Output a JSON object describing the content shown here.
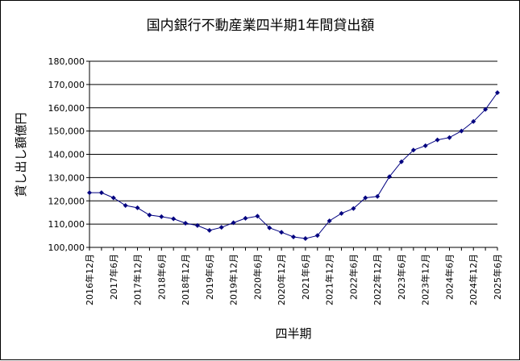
{
  "chart_data": {
    "type": "line",
    "title": "国内銀行不動産業四半期1年間貸出額",
    "xlabel": "四半期",
    "ylabel": "貸し出し額億円",
    "ylim": [
      100000,
      180000
    ],
    "ytick_step": 10000,
    "grid": "horizontal",
    "legend": "none",
    "series_color": "#000080",
    "x": [
      "2016年12月",
      "2017年3月",
      "2017年6月",
      "2017年9月",
      "2017年12月",
      "2018年3月",
      "2018年6月",
      "2018年9月",
      "2018年12月",
      "2019年3月",
      "2019年6月",
      "2019年9月",
      "2019年12月",
      "2020年3月",
      "2020年6月",
      "2020年9月",
      "2020年12月",
      "2021年3月",
      "2021年6月",
      "2021年9月",
      "2021年12月",
      "2022年3月",
      "2022年6月",
      "2022年9月",
      "2022年12月",
      "2023年3月",
      "2023年6月",
      "2023年9月",
      "2023年12月",
      "2024年3月",
      "2024年6月",
      "2024年9月",
      "2024年12月",
      "2025年3月",
      "2025年6月"
    ],
    "x_tick_labels": [
      "2016年12月",
      "2017年6月",
      "2017年12月",
      "2018年6月",
      "2018年12月",
      "2019年6月",
      "2019年12月",
      "2020年6月",
      "2020年12月",
      "2021年6月",
      "2021年12月",
      "2022年6月",
      "2022年12月",
      "2023年6月",
      "2023年12月",
      "2024年6月",
      "2024年12月",
      "2025年6月"
    ],
    "values": [
      123500,
      123500,
      121300,
      118000,
      117000,
      113900,
      113200,
      112300,
      110400,
      109400,
      107300,
      108600,
      110600,
      112500,
      113400,
      108400,
      106500,
      104500,
      103800,
      105100,
      111400,
      114600,
      116700,
      121300,
      121900,
      130400,
      136800,
      141800,
      143700,
      146200,
      147200,
      150000,
      154100,
      159300,
      166500
    ]
  }
}
